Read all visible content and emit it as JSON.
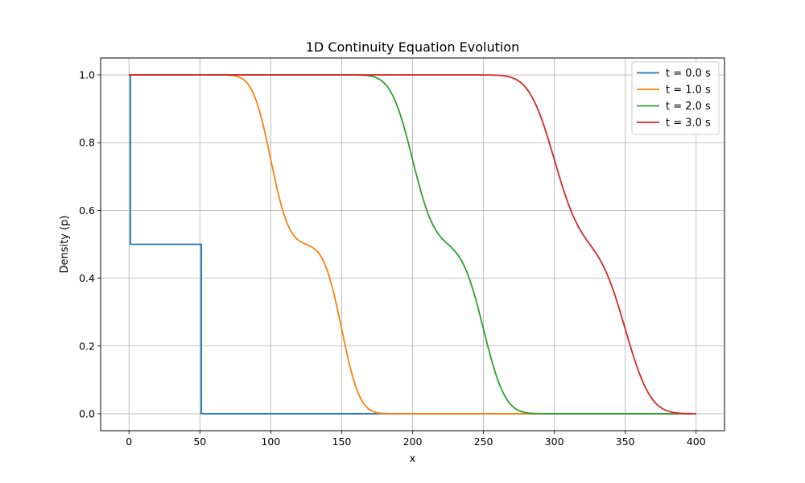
{
  "chart_data": {
    "type": "line",
    "title": "1D Continuity Equation Evolution",
    "xlabel": "x",
    "ylabel": "Density (p)",
    "xlim": [
      -20,
      420
    ],
    "ylim": [
      -0.05,
      1.05
    ],
    "xticks": [
      "0",
      "50",
      "100",
      "150",
      "200",
      "250",
      "300",
      "350",
      "400"
    ],
    "yticks": [
      "0.0",
      "0.2",
      "0.4",
      "0.6",
      "0.8",
      "1.0"
    ],
    "grid": true,
    "legend_position": "top-right",
    "series": [
      {
        "name": "t = 0.0 s",
        "color": "#1f77b4",
        "points": [
          [
            0,
            1.0
          ],
          [
            1,
            1.0
          ],
          [
            1,
            0.5
          ],
          [
            50,
            0.5
          ],
          [
            51,
            0.5
          ],
          [
            51,
            0.0
          ],
          [
            400,
            0.0
          ]
        ]
      },
      {
        "name": "t = 1.0 s",
        "color": "#ff7f0e",
        "profile": {
          "shift": 100,
          "width": 10
        }
      },
      {
        "name": "t = 2.0 s",
        "color": "#2ca02c",
        "profile": {
          "shift": 200,
          "width": 12
        }
      },
      {
        "name": "t = 3.0 s",
        "color": "#d62728",
        "profile": {
          "shift": 300,
          "width": 14
        }
      }
    ]
  }
}
